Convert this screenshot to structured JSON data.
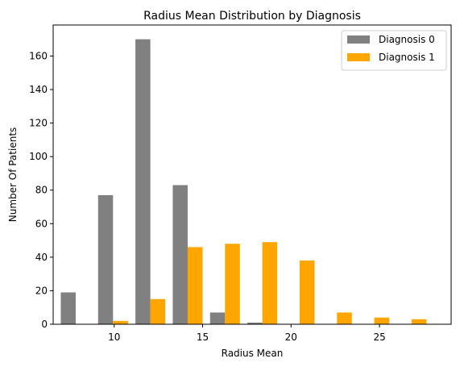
{
  "chart_data": {
    "type": "bar",
    "title": "Radius Mean Distribution by Diagnosis",
    "xlabel": "Radius Mean",
    "ylabel": "Number Of Patients",
    "xlim": [
      6.55,
      29.05
    ],
    "ylim": [
      0,
      178.5
    ],
    "x_ticks": [
      10,
      15,
      20,
      25
    ],
    "y_ticks": [
      0,
      20,
      40,
      60,
      80,
      100,
      120,
      140,
      160
    ],
    "bin_edges": [
      6.98,
      9.09,
      11.2,
      13.31,
      15.42,
      17.53,
      19.64,
      21.75,
      23.86,
      25.97,
      28.08
    ],
    "legend_position": "top-right",
    "grid": false,
    "series": [
      {
        "name": "Diagnosis 0",
        "color": "#808080",
        "values": [
          19,
          77,
          170,
          83,
          7,
          1,
          0,
          0,
          0,
          0
        ]
      },
      {
        "name": "Diagnosis 1",
        "color": "#ffa500",
        "values": [
          0,
          2,
          15,
          46,
          48,
          49,
          38,
          7,
          4,
          3
        ]
      }
    ]
  }
}
